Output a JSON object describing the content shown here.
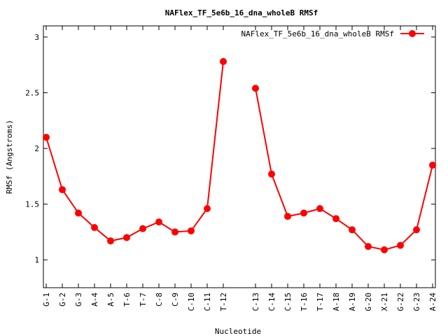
{
  "chart_data": {
    "type": "line",
    "title": "NAFlex_TF_5e6b_16_dna_wholeB RMSf",
    "xlabel": "Nucleotide",
    "ylabel": "RMSf (Angstroms)",
    "ylim": [
      0.75,
      3.1
    ],
    "yticks": [
      "1",
      "1.5",
      "2",
      "2.5",
      "3"
    ],
    "legend_position": "top-right",
    "grid": false,
    "line_color": "#ff0000",
    "categories": [
      "G-1",
      "G-2",
      "G-3",
      "A-4",
      "A-5",
      "T-6",
      "T-7",
      "C-8",
      "C-9",
      "C-10",
      "C-11",
      "T-12",
      "C-13",
      "C-14",
      "C-15",
      "T-16",
      "T-17",
      "A-18",
      "A-19",
      "G-20",
      "X-21",
      "G-22",
      "G-23",
      "A-24"
    ],
    "x": [
      1,
      2,
      3,
      4,
      5,
      6,
      7,
      8,
      9,
      10,
      11,
      12,
      14,
      15,
      16,
      17,
      18,
      19,
      20,
      21,
      22,
      23,
      24,
      25
    ],
    "xlim": [
      1,
      25
    ],
    "series": [
      {
        "name": "NAFlex_TF_5e6b_16_dna_wholeB RMSf",
        "segments": [
          [
            0,
            11
          ],
          [
            12,
            23
          ]
        ],
        "values": [
          2.1,
          1.63,
          1.42,
          1.29,
          1.17,
          1.2,
          1.28,
          1.34,
          1.25,
          1.26,
          1.46,
          2.78,
          2.54,
          1.77,
          1.39,
          1.42,
          1.46,
          1.37,
          1.27,
          1.12,
          1.09,
          1.13,
          1.27,
          1.85
        ]
      }
    ]
  }
}
